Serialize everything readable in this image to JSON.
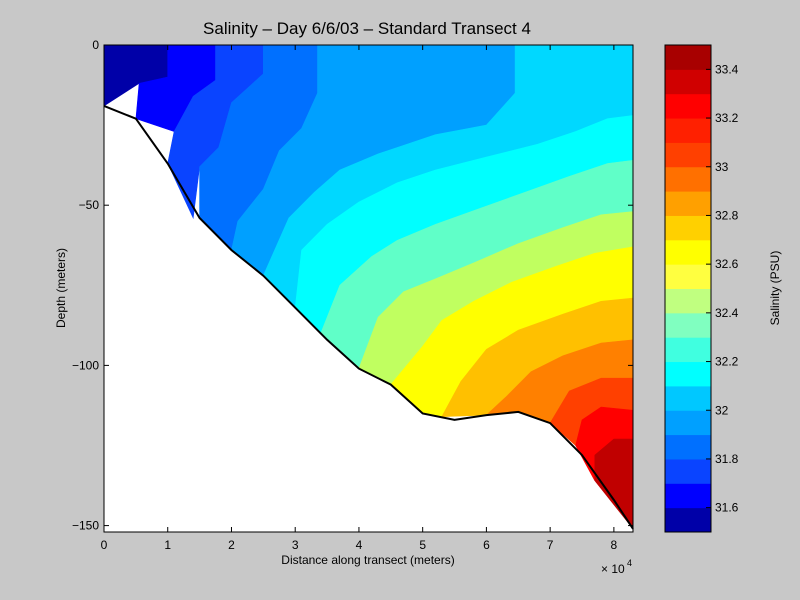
{
  "chart_data": [
    {
      "type": "heatmap",
      "subtype": "filled-contour",
      "title": "Salinity – Day 6/6/03 – Standard Transect 4",
      "xlabel": "Distance along transect (meters)",
      "ylabel": "Depth (meters)",
      "x_multiplier": "× 10",
      "x_multiplier_exp": "4",
      "xlim": [
        0,
        83000
      ],
      "ylim": [
        -152,
        0
      ],
      "xticks": [
        {
          "value": 0,
          "label": "0"
        },
        {
          "value": 10000,
          "label": "1"
        },
        {
          "value": 20000,
          "label": "2"
        },
        {
          "value": 30000,
          "label": "3"
        },
        {
          "value": 40000,
          "label": "4"
        },
        {
          "value": 50000,
          "label": "5"
        },
        {
          "value": 60000,
          "label": "6"
        },
        {
          "value": 70000,
          "label": "7"
        },
        {
          "value": 80000,
          "label": "8"
        }
      ],
      "yticks": [
        {
          "value": 0,
          "label": "0"
        },
        {
          "value": -50,
          "label": "−50"
        },
        {
          "value": -100,
          "label": "−100"
        },
        {
          "value": -150,
          "label": "−150"
        }
      ],
      "bottom_profile": [
        [
          0,
          -19
        ],
        [
          5000,
          -23
        ],
        [
          10000,
          -37
        ],
        [
          15000,
          -54
        ],
        [
          20000,
          -64
        ],
        [
          25000,
          -72
        ],
        [
          30000,
          -82
        ],
        [
          35000,
          -92
        ],
        [
          40000,
          -101
        ],
        [
          45000,
          -106
        ],
        [
          50000,
          -115
        ],
        [
          55000,
          -117
        ],
        [
          60000,
          -115.5
        ],
        [
          65000,
          -114.5
        ],
        [
          70000,
          -118
        ],
        [
          75000,
          -128
        ],
        [
          80000,
          -142
        ],
        [
          83000,
          -151
        ]
      ],
      "contour_levels": [
        31.5,
        31.6,
        31.7,
        31.8,
        31.9,
        32.0,
        32.1,
        32.2,
        32.3,
        32.4,
        32.5,
        32.6,
        32.7,
        32.8,
        32.9,
        33.0,
        33.1,
        33.2,
        33.3,
        33.4,
        33.5
      ],
      "bands": [
        {
          "from": 31.5,
          "to": 31.6,
          "color": "#0000a8",
          "region": [
            [
              0,
              0
            ],
            [
              10000,
              0
            ],
            [
              10000,
              -10
            ],
            [
              5500,
              -12
            ],
            [
              0,
              -19
            ]
          ]
        },
        {
          "from": 31.6,
          "to": 31.7,
          "color": "#0000ff",
          "region": [
            [
              10000,
              0
            ],
            [
              17500,
              0
            ],
            [
              17500,
              -11
            ],
            [
              14000,
              -16
            ],
            [
              11000,
              -27
            ],
            [
              5000,
              -23
            ],
            [
              5500,
              -12
            ],
            [
              10000,
              -10
            ]
          ]
        },
        {
          "from": 31.7,
          "to": 31.8,
          "color": "#0a44ff",
          "region": [
            [
              17500,
              0
            ],
            [
              25000,
              0
            ],
            [
              25000,
              -9
            ],
            [
              20000,
              -18
            ],
            [
              18000,
              -32
            ],
            [
              15000,
              -38
            ],
            [
              14000,
              -54
            ],
            [
              10000,
              -37
            ],
            [
              11000,
              -27
            ],
            [
              14000,
              -16
            ],
            [
              17500,
              -11
            ]
          ]
        },
        {
          "from": 31.8,
          "to": 31.9,
          "color": "#0070ff",
          "region": [
            [
              25000,
              0
            ],
            [
              33500,
              0
            ],
            [
              33500,
              -15
            ],
            [
              31000,
              -26
            ],
            [
              27500,
              -33
            ],
            [
              25000,
              -45
            ],
            [
              21000,
              -55
            ],
            [
              20000,
              -64
            ],
            [
              15000,
              -54
            ],
            [
              15000,
              -38
            ],
            [
              18000,
              -32
            ],
            [
              20000,
              -18
            ],
            [
              25000,
              -9
            ]
          ]
        },
        {
          "from": 31.9,
          "to": 32.0,
          "color": "#00a0ff",
          "region": [
            [
              33500,
              0
            ],
            [
              64500,
              0
            ],
            [
              64500,
              -15
            ],
            [
              60000,
              -25
            ],
            [
              52000,
              -28
            ],
            [
              46000,
              -32
            ],
            [
              43000,
              -34
            ],
            [
              37000,
              -39
            ],
            [
              33000,
              -46
            ],
            [
              29000,
              -54
            ],
            [
              25000,
              -72
            ],
            [
              20000,
              -64
            ],
            [
              21000,
              -55
            ],
            [
              25000,
              -45
            ],
            [
              27500,
              -33
            ],
            [
              31000,
              -26
            ],
            [
              33500,
              -15
            ]
          ]
        },
        {
          "from": 32.0,
          "to": 32.1,
          "color": "#00d8ff",
          "region": [
            [
              64500,
              0
            ],
            [
              83000,
              0
            ],
            [
              83000,
              -22
            ],
            [
              79000,
              -23
            ],
            [
              74000,
              -27
            ],
            [
              68000,
              -31
            ],
            [
              60000,
              -35
            ],
            [
              52000,
              -39
            ],
            [
              46000,
              -43
            ],
            [
              40000,
              -49
            ],
            [
              35000,
              -56
            ],
            [
              31000,
              -64
            ],
            [
              30000,
              -82
            ],
            [
              25000,
              -72
            ],
            [
              29000,
              -54
            ],
            [
              33000,
              -46
            ],
            [
              37000,
              -39
            ],
            [
              43000,
              -34
            ],
            [
              46000,
              -32
            ],
            [
              52000,
              -28
            ],
            [
              60000,
              -25
            ],
            [
              64500,
              -15
            ]
          ]
        },
        {
          "from": 32.1,
          "to": 32.2,
          "color": "#00ffff",
          "region": [
            [
              83000,
              -22
            ],
            [
              83000,
              -36
            ],
            [
              79000,
              -37
            ],
            [
              73000,
              -41
            ],
            [
              66000,
              -46
            ],
            [
              59000,
              -51
            ],
            [
              52000,
              -56
            ],
            [
              46000,
              -61
            ],
            [
              42000,
              -66
            ],
            [
              37000,
              -75
            ],
            [
              34000,
              -90
            ],
            [
              30000,
              -82
            ],
            [
              31000,
              -64
            ],
            [
              35000,
              -56
            ],
            [
              40000,
              -49
            ],
            [
              46000,
              -43
            ],
            [
              52000,
              -39
            ],
            [
              60000,
              -35
            ],
            [
              68000,
              -31
            ],
            [
              74000,
              -27
            ],
            [
              79000,
              -23
            ]
          ]
        },
        {
          "from": 32.2,
          "to": 32.3,
          "color": "#60ffc8",
          "region": [
            [
              83000,
              -36
            ],
            [
              83000,
              -52
            ],
            [
              78000,
              -53
            ],
            [
              72000,
              -57
            ],
            [
              65000,
              -62
            ],
            [
              58000,
              -68
            ],
            [
              52000,
              -73
            ],
            [
              47000,
              -77
            ],
            [
              43000,
              -85
            ],
            [
              40000,
              -101
            ],
            [
              34000,
              -90
            ],
            [
              37000,
              -75
            ],
            [
              42000,
              -66
            ],
            [
              46000,
              -61
            ],
            [
              52000,
              -56
            ],
            [
              59000,
              -51
            ],
            [
              66000,
              -46
            ],
            [
              73000,
              -41
            ],
            [
              79000,
              -37
            ]
          ]
        },
        {
          "from": 32.3,
          "to": 32.4,
          "color": "#c0ff60",
          "region": [
            [
              83000,
              -52
            ],
            [
              83000,
              -63
            ],
            [
              77000,
              -65
            ],
            [
              71000,
              -69
            ],
            [
              64000,
              -74
            ],
            [
              58000,
              -80
            ],
            [
              53000,
              -86
            ],
            [
              50000,
              -94
            ],
            [
              45000,
              -106
            ],
            [
              40000,
              -101
            ],
            [
              43000,
              -85
            ],
            [
              47000,
              -77
            ],
            [
              52000,
              -73
            ],
            [
              58000,
              -68
            ],
            [
              65000,
              -62
            ],
            [
              72000,
              -57
            ],
            [
              78000,
              -53
            ]
          ]
        },
        {
          "from": 32.4,
          "to": 32.5,
          "color": "#ffff00",
          "region": [
            [
              83000,
              -63
            ],
            [
              83000,
              -79
            ],
            [
              78000,
              -80
            ],
            [
              72000,
              -84
            ],
            [
              65000,
              -89
            ],
            [
              60000,
              -95
            ],
            [
              56000,
              -105
            ],
            [
              53000,
              -116
            ],
            [
              50000,
              -115
            ],
            [
              45000,
              -106
            ],
            [
              50000,
              -94
            ],
            [
              53000,
              -86
            ],
            [
              58000,
              -80
            ],
            [
              64000,
              -74
            ],
            [
              71000,
              -69
            ],
            [
              77000,
              -65
            ]
          ]
        },
        {
          "from": 32.5,
          "to": 32.6,
          "color": "#ffc000",
          "region": [
            [
              83000,
              -79
            ],
            [
              83000,
              -92
            ],
            [
              78000,
              -93
            ],
            [
              72000,
              -97
            ],
            [
              67000,
              -102
            ],
            [
              63000,
              -110
            ],
            [
              60000,
              -115.5
            ],
            [
              53000,
              -116
            ],
            [
              56000,
              -105
            ],
            [
              60000,
              -95
            ],
            [
              65000,
              -89
            ],
            [
              72000,
              -84
            ],
            [
              78000,
              -80
            ]
          ]
        },
        {
          "from": 32.6,
          "to": 32.7,
          "color": "#ff8000",
          "region": [
            [
              83000,
              -92
            ],
            [
              83000,
              -104
            ],
            [
              78000,
              -104
            ],
            [
              73000,
              -108
            ],
            [
              70000,
              -118
            ],
            [
              65000,
              -114.5
            ],
            [
              60000,
              -115.5
            ],
            [
              63000,
              -110
            ],
            [
              67000,
              -102
            ],
            [
              72000,
              -97
            ],
            [
              78000,
              -93
            ]
          ]
        },
        {
          "from": 32.7,
          "to": 32.8,
          "color": "#ff4000",
          "region": [
            [
              83000,
              -104
            ],
            [
              83000,
              -114
            ],
            [
              78000,
              -113
            ],
            [
              75000,
              -117
            ],
            [
              74000,
              -125
            ],
            [
              70000,
              -118
            ],
            [
              73000,
              -108
            ],
            [
              78000,
              -104
            ]
          ]
        },
        {
          "from": 32.8,
          "to": 32.9,
          "color": "#ff0000",
          "region": [
            [
              83000,
              -114
            ],
            [
              83000,
              -123
            ],
            [
              80000,
              -123
            ],
            [
              77000,
              -128
            ],
            [
              77000,
              -136
            ],
            [
              74000,
              -125
            ],
            [
              75000,
              -117
            ],
            [
              78000,
              -113
            ]
          ]
        },
        {
          "from": 32.9,
          "to": 33.0,
          "color": "#c00000",
          "region": [
            [
              83000,
              -123
            ],
            [
              83000,
              -151
            ],
            [
              77000,
              -136
            ],
            [
              77000,
              -128
            ],
            [
              80000,
              -123
            ]
          ]
        }
      ],
      "colorbar": {
        "label": "Salinity (PSU)",
        "range": [
          31.5,
          33.5
        ],
        "ticks": [
          {
            "value": 31.6,
            "label": "31.6"
          },
          {
            "value": 31.8,
            "label": "31.8"
          },
          {
            "value": 32.0,
            "label": "32"
          },
          {
            "value": 32.2,
            "label": "32.2"
          },
          {
            "value": 32.4,
            "label": "32.4"
          },
          {
            "value": 32.6,
            "label": "32.6"
          },
          {
            "value": 32.8,
            "label": "32.8"
          },
          {
            "value": 33.0,
            "label": "33"
          },
          {
            "value": 33.2,
            "label": "33.2"
          },
          {
            "value": 33.4,
            "label": "33.4"
          }
        ],
        "colors": [
          "#0000a8",
          "#0000ff",
          "#0a44ff",
          "#0070ff",
          "#00a0ff",
          "#00c8ff",
          "#00ffff",
          "#40ffe0",
          "#80ffc0",
          "#c0ff80",
          "#ffff40",
          "#ffff00",
          "#ffd000",
          "#ffa000",
          "#ff7000",
          "#ff4000",
          "#ff2000",
          "#ff0000",
          "#d00000",
          "#a80000"
        ]
      }
    }
  ]
}
